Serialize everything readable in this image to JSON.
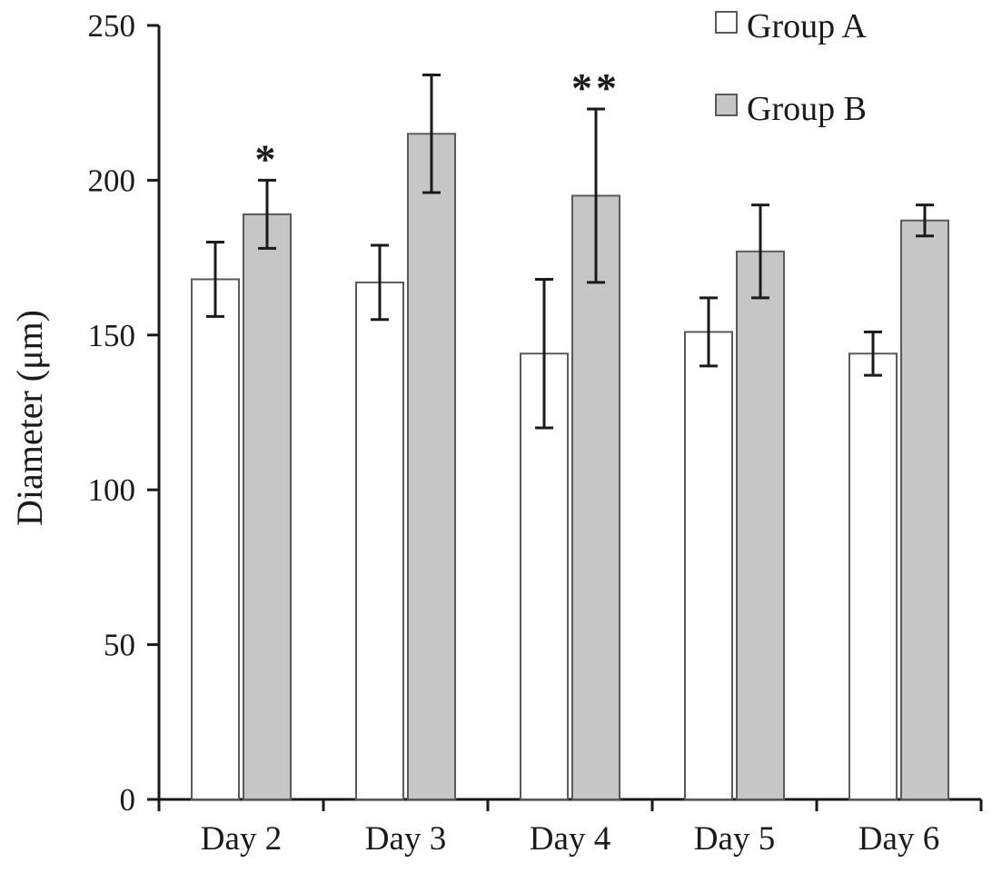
{
  "chart_data": {
    "type": "bar",
    "title": "",
    "xlabel": "",
    "ylabel": "Diameter (μm)",
    "ylim": [
      0,
      250
    ],
    "yticks": [
      0,
      50,
      100,
      150,
      200,
      250
    ],
    "grid": false,
    "legend_position": "top-right",
    "categories": [
      "Day 2",
      "Day 3",
      "Day 4",
      "Day 5",
      "Day 6"
    ],
    "series": [
      {
        "name": "Group A",
        "fill": "#ffffff",
        "values": [
          168,
          167,
          144,
          151,
          144
        ],
        "errors": [
          12,
          12,
          24,
          11,
          7
        ]
      },
      {
        "name": "Group B",
        "fill": "#c6c6c6",
        "values": [
          189,
          215,
          195,
          177,
          187
        ],
        "errors": [
          11,
          19,
          28,
          15,
          5
        ]
      }
    ],
    "annotations": [
      {
        "text": "*",
        "category_index": 0,
        "series_index": 1
      },
      {
        "text": "**",
        "category_index": 2,
        "series_index": 1
      }
    ],
    "colors": {
      "axis": "#1a1a1a",
      "bar_border": "#5a5a5a",
      "error_bar": "#1a1a1a"
    }
  }
}
